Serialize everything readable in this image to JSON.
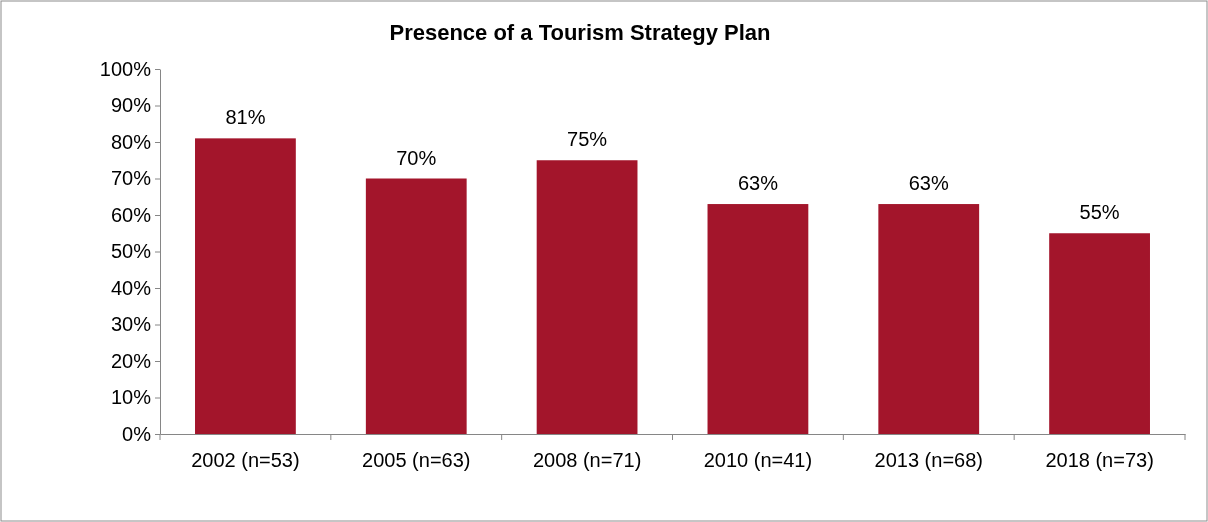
{
  "chart_data": {
    "type": "bar",
    "title": "Presence of a Tourism Strategy Plan",
    "categories": [
      "2002 (n=53)",
      "2005 (n=63)",
      "2008 (n=71)",
      "2010 (n=41)",
      "2013 (n=68)",
      "2018 (n=73)"
    ],
    "values": [
      81,
      70,
      75,
      63,
      63,
      55
    ],
    "value_labels": [
      "81%",
      "70%",
      "75%",
      "63%",
      "63%",
      "55%"
    ],
    "color": "#a3152b",
    "ylim": [
      0,
      100
    ],
    "yticks": [
      {
        "value": 0,
        "label": "0%"
      },
      {
        "value": 10,
        "label": "10%"
      },
      {
        "value": 20,
        "label": "20%"
      },
      {
        "value": 30,
        "label": "30%"
      },
      {
        "value": 40,
        "label": "40%"
      },
      {
        "value": 50,
        "label": "50%"
      },
      {
        "value": 60,
        "label": "60%"
      },
      {
        "value": 70,
        "label": "70%"
      },
      {
        "value": 80,
        "label": "80%"
      },
      {
        "value": 90,
        "label": "90%"
      },
      {
        "value": 100,
        "label": "100%"
      }
    ],
    "grid": false
  }
}
